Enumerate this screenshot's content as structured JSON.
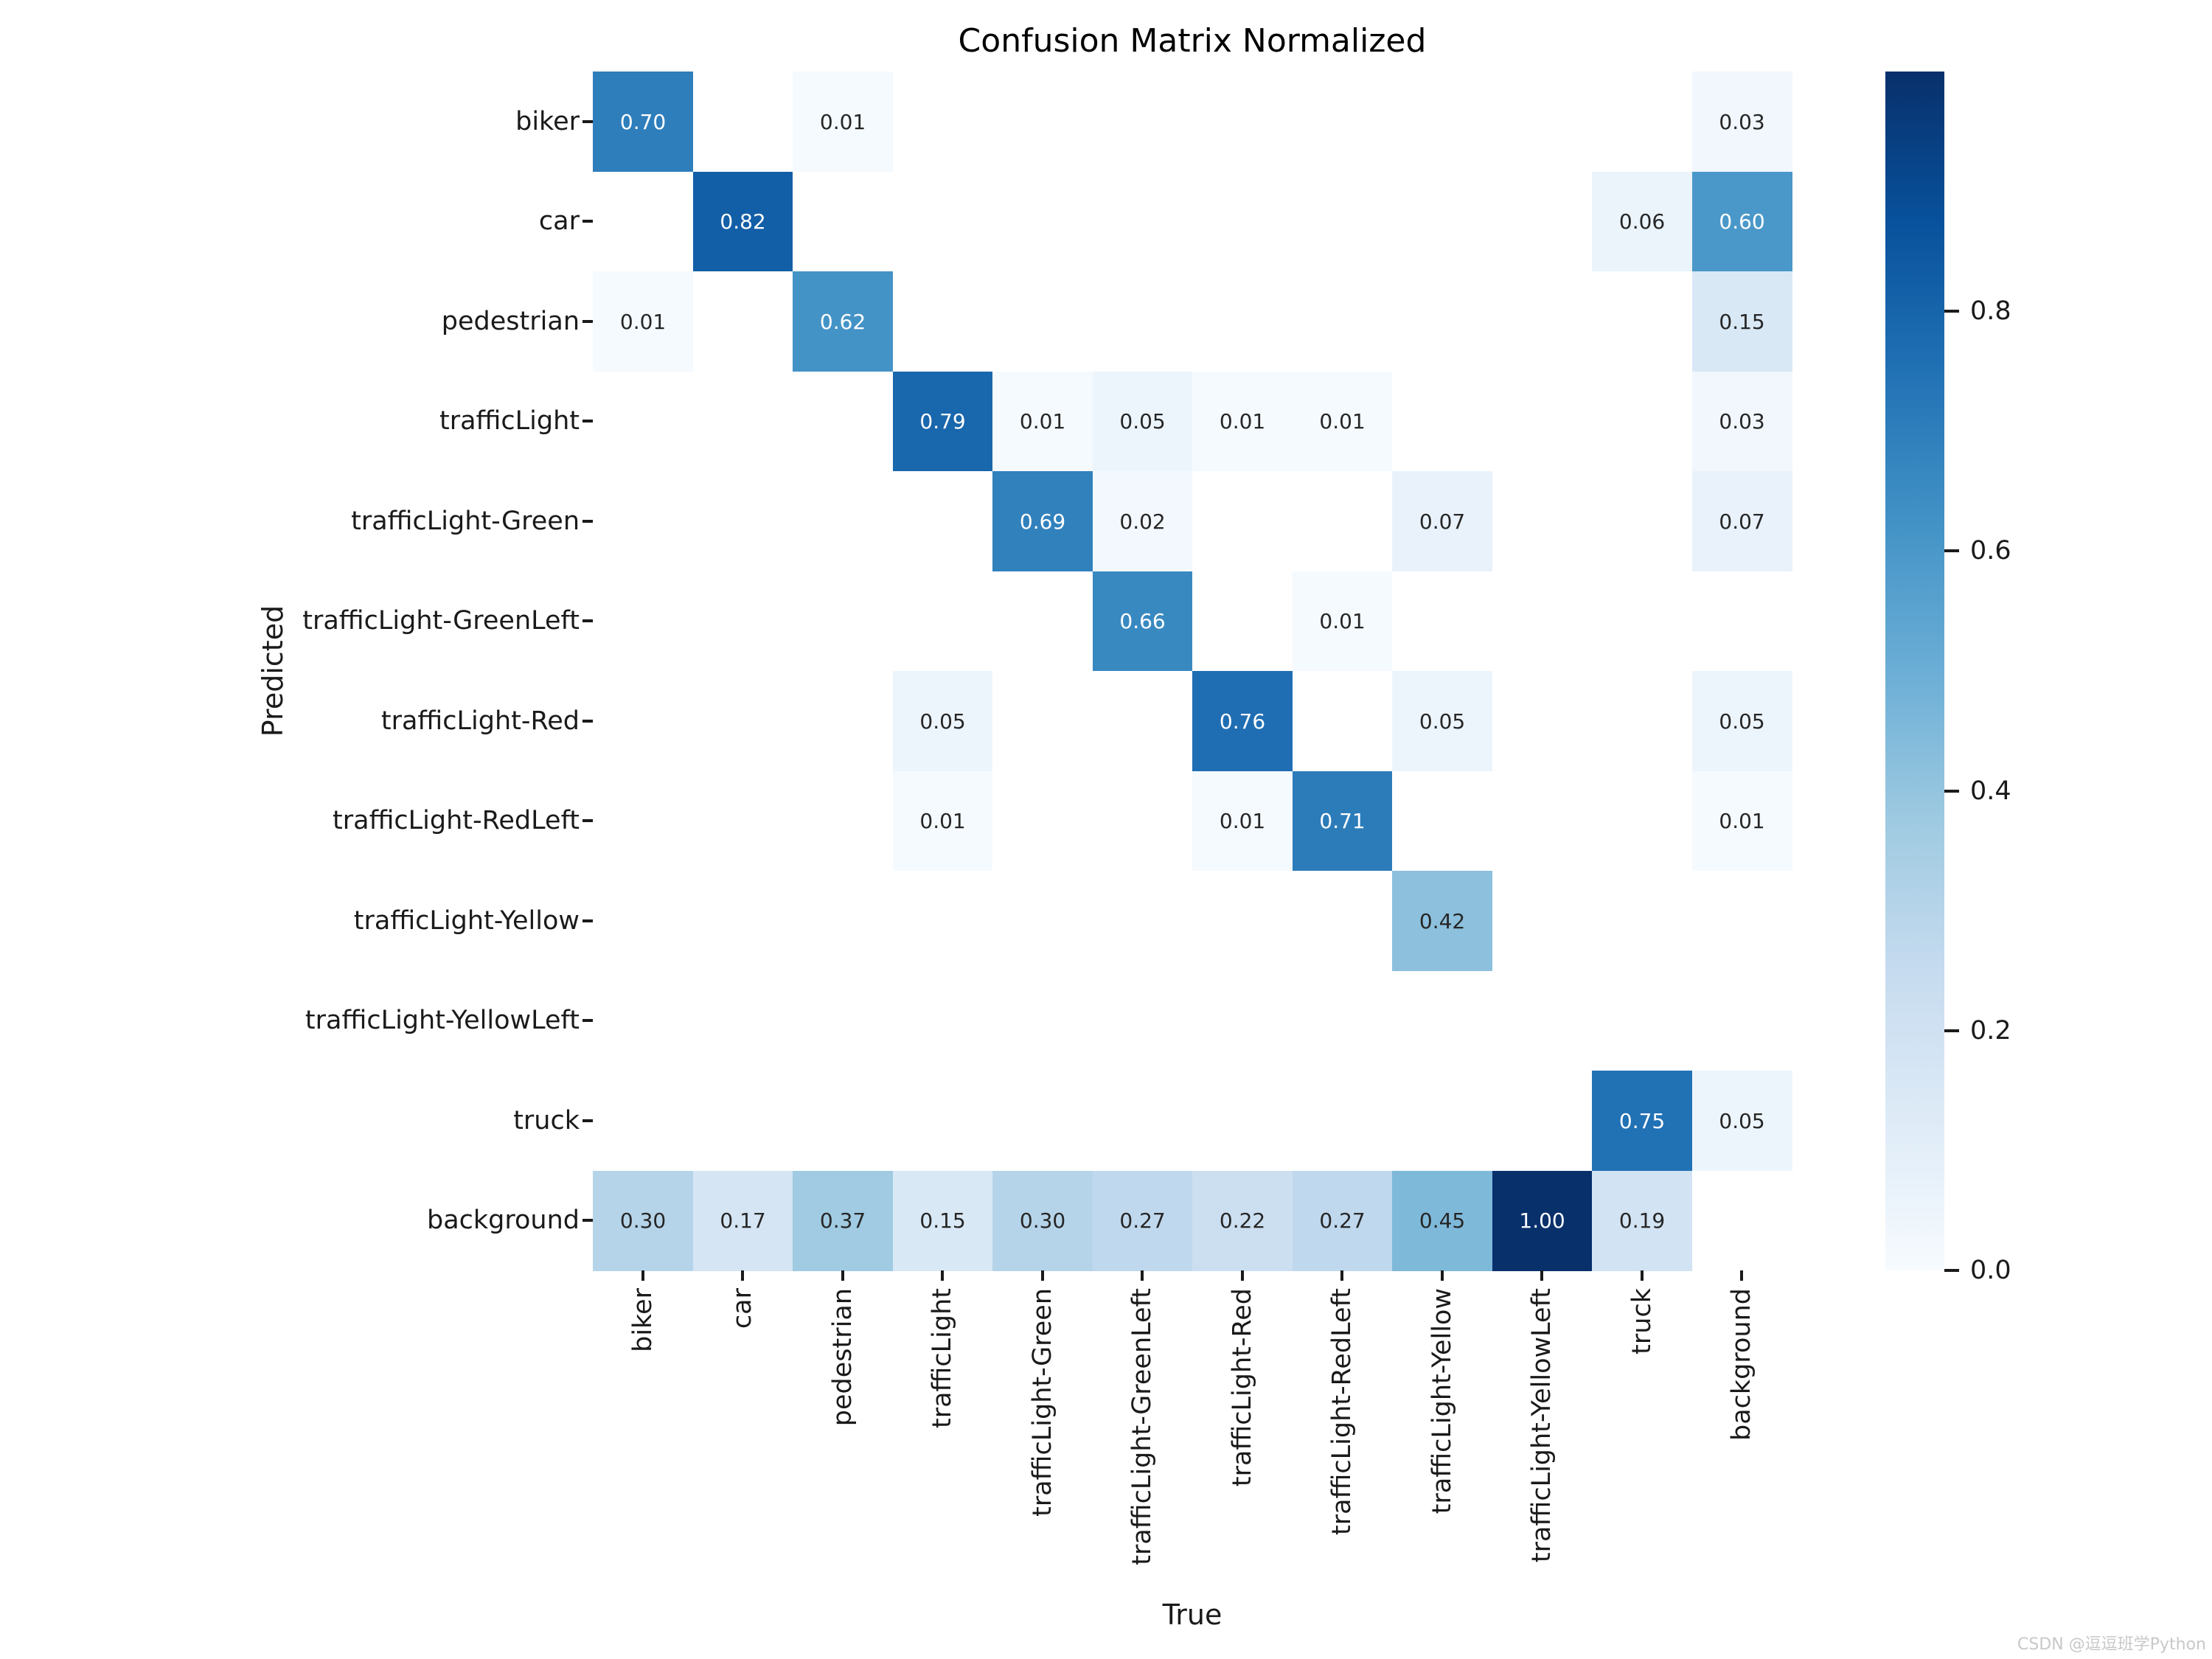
{
  "figure": {
    "title": "Confusion Matrix Normalized",
    "xlabel": "True",
    "ylabel": "Predicted",
    "watermark": "CSDN @逗逗班学Python"
  },
  "chart_data": {
    "type": "heatmap",
    "title": "Confusion Matrix Normalized",
    "xlabel": "True",
    "ylabel": "Predicted",
    "x_categories": [
      "biker",
      "car",
      "pedestrian",
      "trafficLight",
      "trafficLight-Green",
      "trafficLight-GreenLeft",
      "trafficLight-Red",
      "trafficLight-RedLeft",
      "trafficLight-Yellow",
      "trafficLight-YellowLeft",
      "truck",
      "background"
    ],
    "y_categories": [
      "biker",
      "car",
      "pedestrian",
      "trafficLight",
      "trafficLight-Green",
      "trafficLight-GreenLeft",
      "trafficLight-Red",
      "trafficLight-RedLeft",
      "trafficLight-Yellow",
      "trafficLight-YellowLeft",
      "truck",
      "background"
    ],
    "matrix": [
      [
        0.7,
        null,
        0.01,
        null,
        null,
        null,
        null,
        null,
        null,
        null,
        null,
        0.03
      ],
      [
        null,
        0.82,
        null,
        null,
        null,
        null,
        null,
        null,
        null,
        null,
        0.06,
        0.6
      ],
      [
        0.01,
        null,
        0.62,
        null,
        null,
        null,
        null,
        null,
        null,
        null,
        null,
        0.15
      ],
      [
        null,
        null,
        null,
        0.79,
        0.01,
        0.05,
        0.01,
        0.01,
        null,
        null,
        null,
        0.03
      ],
      [
        null,
        null,
        null,
        null,
        0.69,
        0.02,
        null,
        null,
        0.07,
        null,
        null,
        0.07
      ],
      [
        null,
        null,
        null,
        null,
        null,
        0.66,
        null,
        0.01,
        null,
        null,
        null,
        null
      ],
      [
        null,
        null,
        null,
        0.05,
        null,
        null,
        0.76,
        null,
        0.05,
        null,
        null,
        0.05
      ],
      [
        null,
        null,
        null,
        0.01,
        null,
        null,
        0.01,
        0.71,
        null,
        null,
        null,
        0.01
      ],
      [
        null,
        null,
        null,
        null,
        null,
        null,
        null,
        null,
        0.42,
        null,
        null,
        null
      ],
      [
        null,
        null,
        null,
        null,
        null,
        null,
        null,
        null,
        null,
        null,
        null,
        null
      ],
      [
        null,
        null,
        null,
        null,
        null,
        null,
        null,
        null,
        null,
        null,
        0.75,
        0.05
      ],
      [
        0.3,
        0.17,
        0.37,
        0.15,
        0.3,
        0.27,
        0.22,
        0.27,
        0.45,
        1.0,
        0.19,
        null
      ]
    ],
    "cell_label_decimals": 2,
    "colormap": {
      "name": "Blues",
      "anchors": [
        "#f7fbff",
        "#deebf7",
        "#c6dbef",
        "#9ecae1",
        "#6baed6",
        "#4292c6",
        "#2171b5",
        "#08519c",
        "#08306b"
      ]
    },
    "empty_cell_color": "#ffffff",
    "annotation_color_dark": "#262626",
    "annotation_color_light": "#ffffff",
    "white_text_threshold": 0.5,
    "vmin": 0.0,
    "vmax": 1.0,
    "grid": false,
    "legend_position": "right-colorbar",
    "colorbar_ticks": [
      {
        "value": 0.0,
        "label": "0.0"
      },
      {
        "value": 0.2,
        "label": "0.2"
      },
      {
        "value": 0.4,
        "label": "0.4"
      },
      {
        "value": 0.6,
        "label": "0.6"
      },
      {
        "value": 0.8,
        "label": "0.8"
      }
    ]
  }
}
